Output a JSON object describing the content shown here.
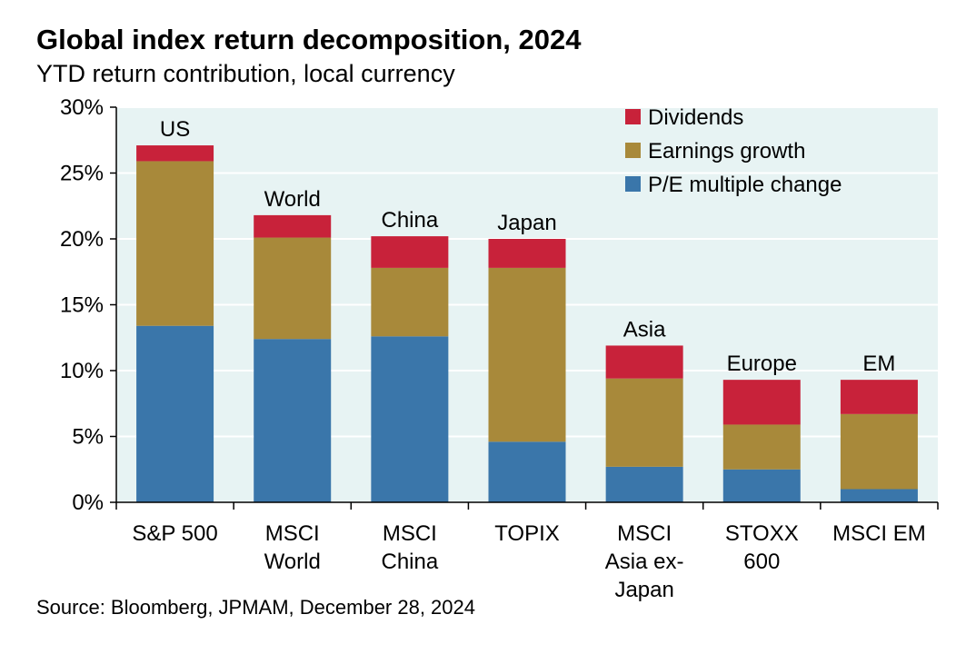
{
  "title": "Global index return decomposition, 2024",
  "subtitle": "YTD return contribution, local currency",
  "source": "Source: Bloomberg, JPMAM, December 28, 2024",
  "colors": {
    "plot_background": "#E7F3F3",
    "gridline": "#FFFFFF",
    "dividends": "#C8223A",
    "earnings_growth": "#A8893A",
    "pe_change": "#3A76AA"
  },
  "chart_data": {
    "type": "bar",
    "stacked": true,
    "categories": [
      [
        "S&P 500"
      ],
      [
        "MSCI",
        "World"
      ],
      [
        "MSCI",
        "China"
      ],
      [
        "TOPIX"
      ],
      [
        "MSCI",
        "Asia ex-",
        "Japan"
      ],
      [
        "STOXX",
        "600"
      ],
      [
        "MSCI EM"
      ]
    ],
    "bar_labels": [
      "US",
      "World",
      "China",
      "Japan",
      "Asia",
      "Europe",
      "EM"
    ],
    "series": [
      {
        "name": "P/E multiple change",
        "color": "#3A76AA",
        "values": [
          13.4,
          12.4,
          12.6,
          4.6,
          2.7,
          2.5,
          1.0
        ]
      },
      {
        "name": "Earnings growth",
        "color": "#A8893A",
        "values": [
          12.5,
          7.7,
          5.2,
          13.2,
          6.7,
          3.4,
          5.7
        ]
      },
      {
        "name": "Dividends",
        "color": "#C8223A",
        "values": [
          1.2,
          1.7,
          2.4,
          2.2,
          2.5,
          3.4,
          2.6
        ]
      }
    ],
    "legend_order": [
      "Dividends",
      "Earnings growth",
      "P/E multiple change"
    ],
    "legend_position": "top-right",
    "ylim": [
      0,
      30
    ],
    "yticks": [
      0,
      5,
      10,
      15,
      20,
      25,
      30
    ],
    "ytick_format": "%",
    "grid": true,
    "xlabel": "",
    "ylabel": ""
  }
}
